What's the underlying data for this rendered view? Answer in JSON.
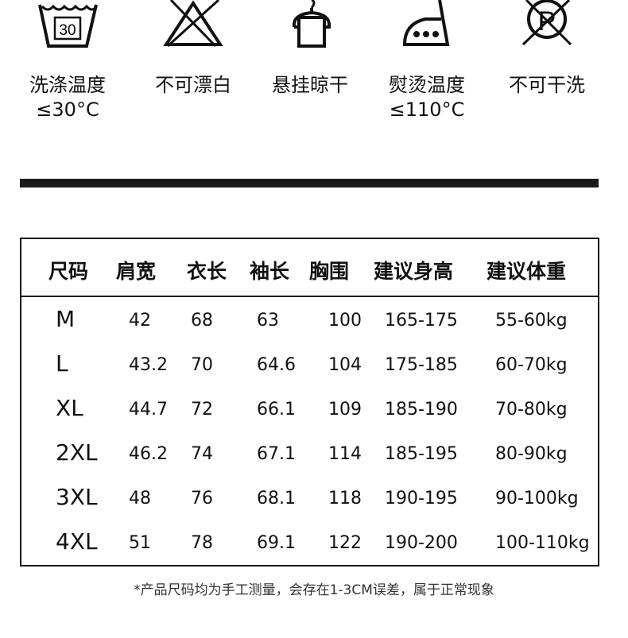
{
  "care_instructions": [
    {
      "icon": "wash-30-icon",
      "label": "洗涤温度",
      "sub": "≤30°C",
      "badge": "30"
    },
    {
      "icon": "no-bleach-icon",
      "label": "不可漂白",
      "sub": ""
    },
    {
      "icon": "hang-dry-icon",
      "label": "悬挂晾干",
      "sub": ""
    },
    {
      "icon": "iron-icon",
      "label": "熨烫温度",
      "sub": "≤110°C"
    },
    {
      "icon": "no-dry-clean-icon",
      "label": "不可干洗",
      "sub": "",
      "badge": "P"
    }
  ],
  "table": {
    "headers": [
      "尺码",
      "肩宽",
      "衣长",
      "袖长",
      "胸围",
      "建议身高",
      "建议体重"
    ],
    "rows": [
      [
        "M",
        "42",
        "68",
        "63",
        "100",
        "165-175",
        "55-60kg"
      ],
      [
        "L",
        "43.2",
        "70",
        "64.6",
        "104",
        "175-185",
        "60-70kg"
      ],
      [
        "XL",
        "44.7",
        "72",
        "66.1",
        "109",
        "185-190",
        "70-80kg"
      ],
      [
        "2XL",
        "46.2",
        "74",
        "67.1",
        "114",
        "185-195",
        "80-90kg"
      ],
      [
        "3XL",
        "48",
        "76",
        "68.1",
        "118",
        "190-195",
        "90-100kg"
      ],
      [
        "4XL",
        "51",
        "78",
        "69.1",
        "122",
        "190-200",
        "100-110kg"
      ]
    ]
  },
  "note": "*产品尺码均为手工测量，会存在1-3CM误差，属于正常现象"
}
